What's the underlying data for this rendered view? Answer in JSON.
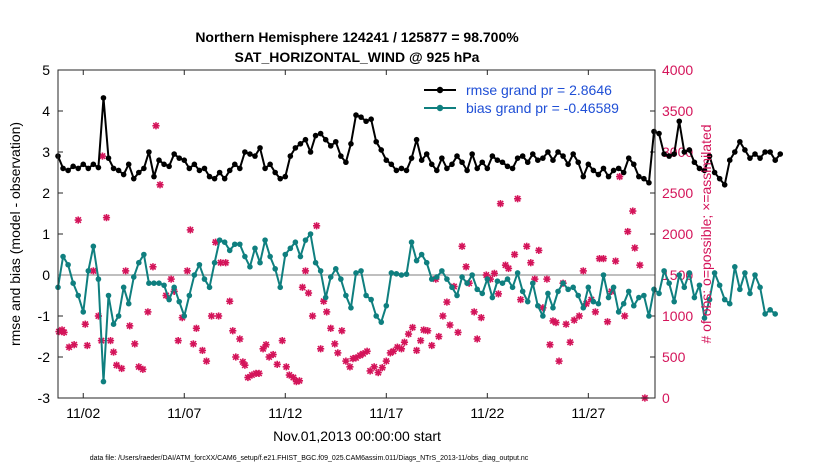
{
  "chart_data": {
    "type": "line",
    "title": "Northern Hemisphere 124241 / 125877 = 98.700%",
    "subtitle": "SAT_HORIZONTAL_WIND @ 925 hPa",
    "xlabel": "Nov.01,2013 00:00:00 start",
    "ylabel_left": "rmse and bias (model - observation)",
    "ylabel_right": "# of obs: o=possible; ×=assimilated",
    "footnote": "data file: /Users/raeder/DAI/ATM_forcXX/CAM6_setup/f.e21.FHIST_BGC.f09_025.CAM6assim.011/Diags_NTrS_2013-11/obs_diag_output.nc",
    "xlim": [
      0.75,
      30.3
    ],
    "ylim_left": [
      -3,
      5
    ],
    "ylim_right": [
      0,
      4000
    ],
    "x_ticks": [
      2,
      7,
      12,
      17,
      22,
      27
    ],
    "x_tick_labels": [
      "11/02",
      "11/07",
      "11/12",
      "11/17",
      "11/22",
      "11/27"
    ],
    "y_ticks_left": [
      -3,
      -2,
      -1,
      0,
      1,
      2,
      3,
      4,
      5
    ],
    "y_ticks_right": [
      0,
      500,
      1000,
      1500,
      2000,
      2500,
      3000,
      3500,
      4000
    ],
    "grid": false,
    "legend_position": "top-right",
    "colors": {
      "rmse": "#000000",
      "bias": "#0f7f7f",
      "obs": "#d4145a",
      "zero_line": "#bfbfbf",
      "legend_text": "#1f4fd6"
    },
    "x_start": 0.75,
    "x_step": 0.25,
    "series": [
      {
        "name": "rmse grand pr = 2.8646",
        "axis": "left",
        "marker": "circle",
        "values": [
          2.9,
          2.6,
          2.55,
          2.65,
          2.6,
          2.7,
          2.6,
          2.7,
          2.62,
          4.32,
          2.85,
          2.6,
          2.55,
          2.45,
          2.7,
          2.35,
          2.5,
          2.6,
          3.0,
          2.4,
          2.8,
          2.7,
          2.65,
          2.95,
          2.85,
          2.8,
          2.6,
          2.7,
          2.55,
          2.6,
          2.4,
          2.35,
          2.5,
          2.35,
          2.55,
          2.7,
          2.6,
          3.0,
          2.95,
          2.9,
          3.1,
          2.6,
          2.7,
          2.5,
          2.35,
          2.4,
          2.9,
          3.1,
          3.2,
          3.3,
          3.0,
          3.4,
          3.45,
          3.3,
          3.15,
          3.25,
          2.9,
          2.75,
          3.2,
          3.9,
          3.85,
          3.75,
          3.8,
          3.25,
          3.05,
          2.8,
          2.7,
          2.55,
          2.6,
          2.55,
          2.85,
          3.3,
          2.8,
          2.95,
          2.7,
          2.55,
          2.85,
          2.6,
          2.7,
          2.9,
          2.75,
          2.55,
          2.95,
          2.6,
          2.75,
          2.6,
          2.9,
          2.8,
          2.75,
          2.65,
          2.6,
          2.85,
          2.9,
          2.75,
          2.95,
          2.8,
          2.85,
          3.0,
          2.8,
          3.0,
          2.9,
          2.7,
          2.95,
          2.75,
          2.4,
          2.7,
          2.55,
          2.45,
          2.6,
          2.4,
          2.55,
          2.6,
          2.5,
          2.85,
          2.7,
          2.4,
          2.35,
          2.25,
          3.5,
          3.45,
          2.95,
          2.9,
          2.95,
          3.75,
          3.0,
          3.05,
          2.75,
          2.6,
          2.55,
          2.9,
          2.5,
          2.35,
          2.2,
          2.8,
          3.0,
          3.25,
          3.05,
          2.85,
          2.95,
          2.85,
          3.0,
          3.0,
          2.8,
          2.95
        ]
      },
      {
        "name": "bias grand pr = -0.46589",
        "axis": "left",
        "marker": "circle",
        "values": [
          -0.3,
          0.45,
          0.25,
          -0.2,
          -0.5,
          -0.9,
          0.1,
          0.7,
          -0.1,
          -2.6,
          -0.5,
          -1.2,
          -1.0,
          -0.3,
          -0.7,
          -0.05,
          0.3,
          0.5,
          -0.2,
          -0.2,
          -0.2,
          -0.25,
          -0.6,
          -0.3,
          -0.65,
          -1.0,
          -0.5,
          0.0,
          0.25,
          -0.1,
          -0.3,
          0.3,
          0.85,
          0.8,
          0.6,
          0.75,
          0.75,
          0.45,
          0.2,
          0.65,
          0.3,
          0.85,
          0.45,
          0.15,
          -0.3,
          0.5,
          0.65,
          0.8,
          0.45,
          0.85,
          1.0,
          0.3,
          0.1,
          -0.55,
          -0.05,
          0.15,
          -0.1,
          -0.5,
          -0.8,
          0.05,
          0.1,
          -0.5,
          -0.6,
          -1.0,
          -1.15,
          -0.75,
          0.05,
          0.03,
          0.0,
          0.02,
          0.8,
          0.35,
          0.5,
          0.3,
          -0.1,
          -0.05,
          0.1,
          -0.1,
          -0.3,
          -0.5,
          -0.05,
          -0.2,
          0.0,
          -0.35,
          -0.45,
          -0.1,
          -0.55,
          -0.15,
          -0.2,
          -0.1,
          -0.3,
          0.05,
          -0.4,
          -0.65,
          -0.2,
          -0.75,
          -1.0,
          -0.45,
          -0.8,
          -0.4,
          -0.2,
          -0.35,
          -0.3,
          -0.5,
          -0.8,
          -0.3,
          -0.65,
          -0.7,
          0.0,
          -0.55,
          -0.3,
          -0.9,
          -0.7,
          -0.4,
          -0.75,
          -0.55,
          -0.5,
          -1.0,
          -0.35,
          -0.45,
          0.1,
          -0.2,
          -0.65,
          0.0,
          -0.3,
          0.05,
          -0.55,
          -0.25,
          -1.05,
          -0.6,
          0.05,
          -0.25,
          -0.6,
          -0.7,
          0.2,
          -0.35,
          0.05,
          -0.45,
          0.0,
          -0.3,
          -0.95,
          -0.85,
          -0.95
        ]
      },
      {
        "name": "# of obs",
        "axis": "right",
        "marker": "star",
        "points": [
          [
            0.8,
            810
          ],
          [
            0.95,
            830
          ],
          [
            1.05,
            800
          ],
          [
            1.3,
            620
          ],
          [
            1.55,
            650
          ],
          [
            1.75,
            2170
          ],
          [
            2.1,
            900
          ],
          [
            2.2,
            640
          ],
          [
            2.5,
            1550
          ],
          [
            2.75,
            1000
          ],
          [
            2.9,
            700
          ],
          [
            2.95,
            2950
          ],
          [
            3.15,
            2200
          ],
          [
            3.35,
            700
          ],
          [
            3.5,
            560
          ],
          [
            3.65,
            400
          ],
          [
            3.9,
            360
          ],
          [
            4.1,
            1550
          ],
          [
            4.3,
            880
          ],
          [
            4.55,
            660
          ],
          [
            4.75,
            380
          ],
          [
            4.95,
            350
          ],
          [
            5.2,
            1050
          ],
          [
            5.45,
            1600
          ],
          [
            5.6,
            3320
          ],
          [
            5.8,
            2600
          ],
          [
            6.1,
            1250
          ],
          [
            6.35,
            1450
          ],
          [
            6.5,
            1300
          ],
          [
            6.7,
            700
          ],
          [
            6.9,
            980
          ],
          [
            7.15,
            1550
          ],
          [
            7.3,
            2050
          ],
          [
            7.45,
            660
          ],
          [
            7.6,
            850
          ],
          [
            7.9,
            580
          ],
          [
            8.1,
            450
          ],
          [
            8.35,
            1000
          ],
          [
            8.55,
            1900
          ],
          [
            8.7,
            1000
          ],
          [
            8.8,
            1650
          ],
          [
            9.05,
            1650
          ],
          [
            9.25,
            1180
          ],
          [
            9.4,
            820
          ],
          [
            9.55,
            500
          ],
          [
            9.75,
            720
          ],
          [
            9.9,
            440
          ],
          [
            10.0,
            400
          ],
          [
            10.15,
            250
          ],
          [
            10.35,
            280
          ],
          [
            10.55,
            300
          ],
          [
            10.7,
            300
          ],
          [
            10.9,
            600
          ],
          [
            11.05,
            650
          ],
          [
            11.2,
            500
          ],
          [
            11.4,
            530
          ],
          [
            11.6,
            410
          ],
          [
            11.85,
            700
          ],
          [
            12.05,
            380
          ],
          [
            12.2,
            280
          ],
          [
            12.4,
            250
          ],
          [
            12.55,
            200
          ],
          [
            12.7,
            210
          ],
          [
            12.85,
            1350
          ],
          [
            13.0,
            1550
          ],
          [
            13.15,
            1280
          ],
          [
            13.35,
            1000
          ],
          [
            13.55,
            2100
          ],
          [
            13.75,
            600
          ],
          [
            13.9,
            1180
          ],
          [
            14.05,
            1050
          ],
          [
            14.25,
            850
          ],
          [
            14.45,
            660
          ],
          [
            14.6,
            550
          ],
          [
            14.8,
            820
          ],
          [
            15.0,
            450
          ],
          [
            15.2,
            380
          ],
          [
            15.35,
            480
          ],
          [
            15.5,
            490
          ],
          [
            15.7,
            520
          ],
          [
            15.85,
            540
          ],
          [
            16.05,
            570
          ],
          [
            16.2,
            330
          ],
          [
            16.4,
            380
          ],
          [
            16.6,
            310
          ],
          [
            16.8,
            370
          ],
          [
            17.0,
            450
          ],
          [
            17.2,
            550
          ],
          [
            17.35,
            570
          ],
          [
            17.55,
            620
          ],
          [
            17.75,
            600
          ],
          [
            17.9,
            680
          ],
          [
            18.1,
            780
          ],
          [
            18.3,
            860
          ],
          [
            18.5,
            580
          ],
          [
            18.7,
            700
          ],
          [
            18.85,
            830
          ],
          [
            19.05,
            820
          ],
          [
            19.25,
            640
          ],
          [
            19.45,
            1450
          ],
          [
            19.6,
            750
          ],
          [
            19.8,
            1000
          ],
          [
            20.0,
            1170
          ],
          [
            20.15,
            890
          ],
          [
            20.35,
            1360
          ],
          [
            20.55,
            800
          ],
          [
            20.75,
            1850
          ],
          [
            20.95,
            1600
          ],
          [
            21.1,
            1400
          ],
          [
            21.35,
            1050
          ],
          [
            21.5,
            720
          ],
          [
            21.7,
            980
          ],
          [
            21.95,
            1500
          ],
          [
            22.15,
            1450
          ],
          [
            22.35,
            1520
          ],
          [
            22.55,
            1270
          ],
          [
            22.65,
            2370
          ],
          [
            22.9,
            1620
          ],
          [
            23.05,
            1580
          ],
          [
            23.35,
            1750
          ],
          [
            23.5,
            2430
          ],
          [
            23.65,
            1200
          ],
          [
            23.95,
            1850
          ],
          [
            24.15,
            1650
          ],
          [
            24.35,
            1450
          ],
          [
            24.55,
            1800
          ],
          [
            24.75,
            1100
          ],
          [
            24.95,
            1450
          ],
          [
            25.1,
            650
          ],
          [
            25.25,
            940
          ],
          [
            25.4,
            920
          ],
          [
            25.55,
            450
          ],
          [
            25.75,
            1400
          ],
          [
            25.9,
            900
          ],
          [
            26.1,
            680
          ],
          [
            26.3,
            950
          ],
          [
            26.55,
            1000
          ],
          [
            26.75,
            1550
          ],
          [
            26.9,
            1150
          ],
          [
            27.15,
            1200
          ],
          [
            27.35,
            1050
          ],
          [
            27.55,
            1700
          ],
          [
            27.75,
            1700
          ],
          [
            27.95,
            930
          ],
          [
            28.15,
            1300
          ],
          [
            28.35,
            1670
          ],
          [
            28.55,
            2700
          ],
          [
            28.8,
            1000
          ],
          [
            28.95,
            2030
          ],
          [
            29.2,
            2280
          ],
          [
            29.3,
            1830
          ],
          [
            29.55,
            1620
          ],
          [
            29.8,
            0
          ]
        ]
      }
    ]
  }
}
